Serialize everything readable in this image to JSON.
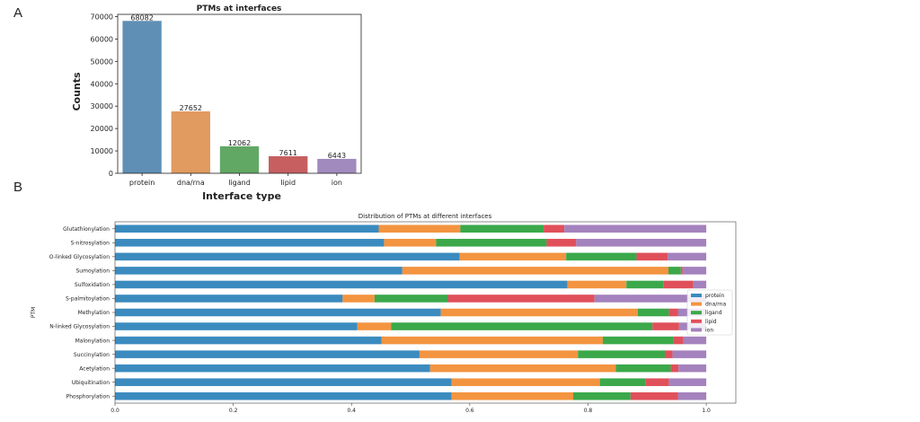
{
  "panels": {
    "a_label": "A",
    "b_label": "B"
  },
  "chart_data": [
    {
      "type": "bar",
      "title": "PTMs at interfaces",
      "xlabel": "Interface type",
      "ylabel": "Counts",
      "categories": [
        "protein",
        "dna/rna",
        "ligand",
        "lipid",
        "ion"
      ],
      "values": [
        68082,
        27652,
        12062,
        7611,
        6443
      ],
      "value_labels": [
        "68082",
        "27652",
        "12062",
        "7611",
        "6443"
      ],
      "colors": [
        "#5f8fb4",
        "#e19a5f",
        "#62a865",
        "#c75f60",
        "#a18abd"
      ],
      "ylim": [
        0,
        71000
      ],
      "yticks": [
        0,
        10000,
        20000,
        30000,
        40000,
        50000,
        60000,
        70000
      ],
      "ytick_labels": [
        "0",
        "10000",
        "20000",
        "30000",
        "40000",
        "50000",
        "60000",
        "70000"
      ]
    },
    {
      "type": "bar",
      "orientation": "horizontal",
      "stacked": true,
      "title": "Distribution of PTMs at different interfaces",
      "xlabel": "",
      "ylabel": "PTM",
      "xlim": [
        0,
        1.05
      ],
      "xticks": [
        0.0,
        0.2,
        0.4,
        0.6,
        0.8,
        1.0
      ],
      "xtick_labels": [
        "0.0",
        "0.2",
        "0.4",
        "0.6",
        "0.8",
        "1.0"
      ],
      "legend_position": "right",
      "categories": [
        "Glutathionylation",
        "S-nitrosylation",
        "O-linked Glycosylation",
        "Sumoylation",
        "Sulfoxidation",
        "S-palmitoylation",
        "Methylation",
        "N-linked Glycosylation",
        "Malonylation",
        "Succinylation",
        "Acetylation",
        "Ubiquitination",
        "Phosphorylation"
      ],
      "series": [
        {
          "name": "protein",
          "color": "#3b8bbf",
          "values": [
            0.446,
            0.455,
            0.583,
            0.486,
            0.765,
            0.385,
            0.551,
            0.41,
            0.451,
            0.515,
            0.533,
            0.569,
            0.569
          ]
        },
        {
          "name": "dna/rna",
          "color": "#f39440",
          "values": [
            0.138,
            0.088,
            0.18,
            0.45,
            0.1,
            0.054,
            0.333,
            0.057,
            0.374,
            0.268,
            0.314,
            0.251,
            0.206
          ]
        },
        {
          "name": "ligand",
          "color": "#3ba84a",
          "values": [
            0.141,
            0.187,
            0.119,
            0.021,
            0.063,
            0.124,
            0.053,
            0.442,
            0.12,
            0.147,
            0.093,
            0.077,
            0.097
          ]
        },
        {
          "name": "lipid",
          "color": "#e0505a",
          "values": [
            0.035,
            0.05,
            0.053,
            0.003,
            0.05,
            0.248,
            0.015,
            0.045,
            0.016,
            0.013,
            0.013,
            0.04,
            0.08
          ]
        },
        {
          "name": "ion",
          "color": "#a482bd",
          "values": [
            0.24,
            0.22,
            0.065,
            0.04,
            0.022,
            0.189,
            0.048,
            0.046,
            0.039,
            0.057,
            0.047,
            0.063,
            0.048
          ]
        }
      ]
    }
  ]
}
